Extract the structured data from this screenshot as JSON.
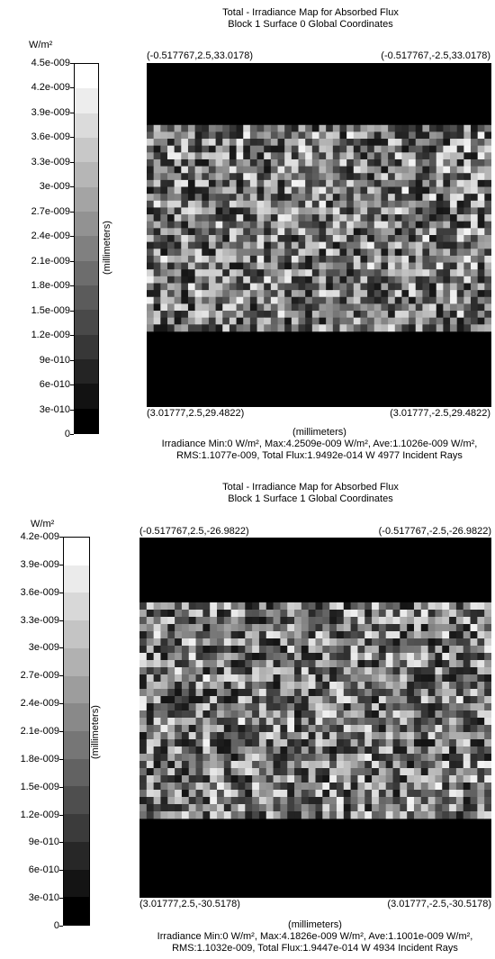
{
  "chart_data": [
    {
      "type": "heatmap",
      "title": "Total - Irradiance Map for Absorbed Flux",
      "subtitle": "Block 1 Surface 0    Global Coordinates",
      "legend_unit": "W/m²",
      "legend_ticks": [
        "4.5e-009",
        "4.2e-009",
        "3.9e-009",
        "3.6e-009",
        "3.3e-009",
        "3e-009",
        "2.7e-009",
        "2.4e-009",
        "2.1e-009",
        "1.8e-009",
        "1.5e-009",
        "1.2e-009",
        "9e-010",
        "6e-010",
        "3e-010",
        "0"
      ],
      "legend_levels": 15,
      "ylabel": "(millimeters)",
      "xlabel": "(millimeters)",
      "corners": {
        "top_left": "(-0.517767,2.5,33.0178)",
        "top_right": "(-0.517767,-2.5,33.0178)",
        "bottom_left": "(3.01777,2.5,29.4822)",
        "bottom_right": "(3.01777,-2.5,29.4822)"
      },
      "stats_line1": "Irradiance Min:0 W/m², Max:4.2509e-009 W/m², Ave:1.1026e-009 W/m²,",
      "stats_line2": "RMS:1.1077e-009, Total Flux:1.9492e-014 W 4977 Incident Rays",
      "min": 0,
      "max": 4.2509e-09,
      "average": 1.1026e-09,
      "grid_cols": 50,
      "grid_rows": 50,
      "band_rows": [
        9,
        39
      ],
      "seed": 17
    },
    {
      "type": "heatmap",
      "title": "Total - Irradiance Map for Absorbed Flux",
      "subtitle": "Block 1 Surface 1    Global Coordinates",
      "legend_unit": "W/m²",
      "legend_ticks": [
        "4.2e-009",
        "3.9e-009",
        "3.6e-009",
        "3.3e-009",
        "3e-009",
        "2.7e-009",
        "2.4e-009",
        "2.1e-009",
        "1.8e-009",
        "1.5e-009",
        "1.2e-009",
        "9e-010",
        "6e-010",
        "3e-010",
        "0"
      ],
      "legend_levels": 14,
      "ylabel": "(millimeters)",
      "xlabel": "(millimeters)",
      "corners": {
        "top_left": "(-0.517767,2.5,-26.9822)",
        "top_right": "(-0.517767,-2.5,-26.9822)",
        "bottom_left": "(3.01777,2.5,-30.5178)",
        "bottom_right": "(3.01777,-2.5,-30.5178)"
      },
      "stats_line1": "Irradiance Min:0 W/m², Max:4.1826e-009 W/m², Ave:1.1001e-009 W/m²,",
      "stats_line2": "RMS:1.1032e-009, Total Flux:1.9447e-014 W 4934 Incident Rays",
      "min": 0,
      "max": 4.1826e-09,
      "average": 1.1001e-09,
      "grid_cols": 50,
      "grid_rows": 50,
      "band_rows": [
        9,
        39
      ],
      "seed": 29
    }
  ]
}
